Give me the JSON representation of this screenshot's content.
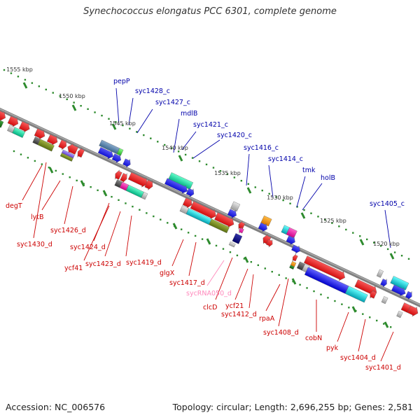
{
  "header": {
    "title": "Synechococcus elongatus PCC 6301, complete genome"
  },
  "footer": {
    "accession": "Accession: NC_006576",
    "stats": "Topology: circular; Length: 2,696,255 bp; Genes: 2,581"
  },
  "colors": {
    "backbone": "#808080",
    "tick": "#2e8b2e",
    "label_top": "#0000aa",
    "label_bottom": "#cc0000",
    "label_rna": "#ff88bb",
    "cds": "#ff0000",
    "cds_blue": "#0000ff"
  },
  "kbp_labels": [
    "1555 kbp",
    "1550 kbp",
    "1545 kbp",
    "1540 kbp",
    "1535 kbp",
    "1530 kbp",
    "1525 kbp",
    "1520 kbp"
  ],
  "top_labels": [
    "pepP",
    "syc1428_c",
    "syc1427_c",
    "mdlB",
    "syc1421_c",
    "syc1420_c",
    "syc1416_c",
    "syc1414_c",
    "tmk",
    "holB",
    "syc1405_c"
  ],
  "bottom_labels": [
    "degT",
    "lytB",
    "syc1426_d",
    "syc1430_d",
    "syc1424_d",
    "ycf41",
    "syc1423_d",
    "syc1419_d",
    "glgX",
    "syc1417_d",
    "sycRNA050_d",
    "clcD",
    "ycf21",
    "syc1412_d",
    "rpaA",
    "syc1408_d",
    "cobN",
    "pyk",
    "syc1404_d",
    "syc1401_d"
  ]
}
